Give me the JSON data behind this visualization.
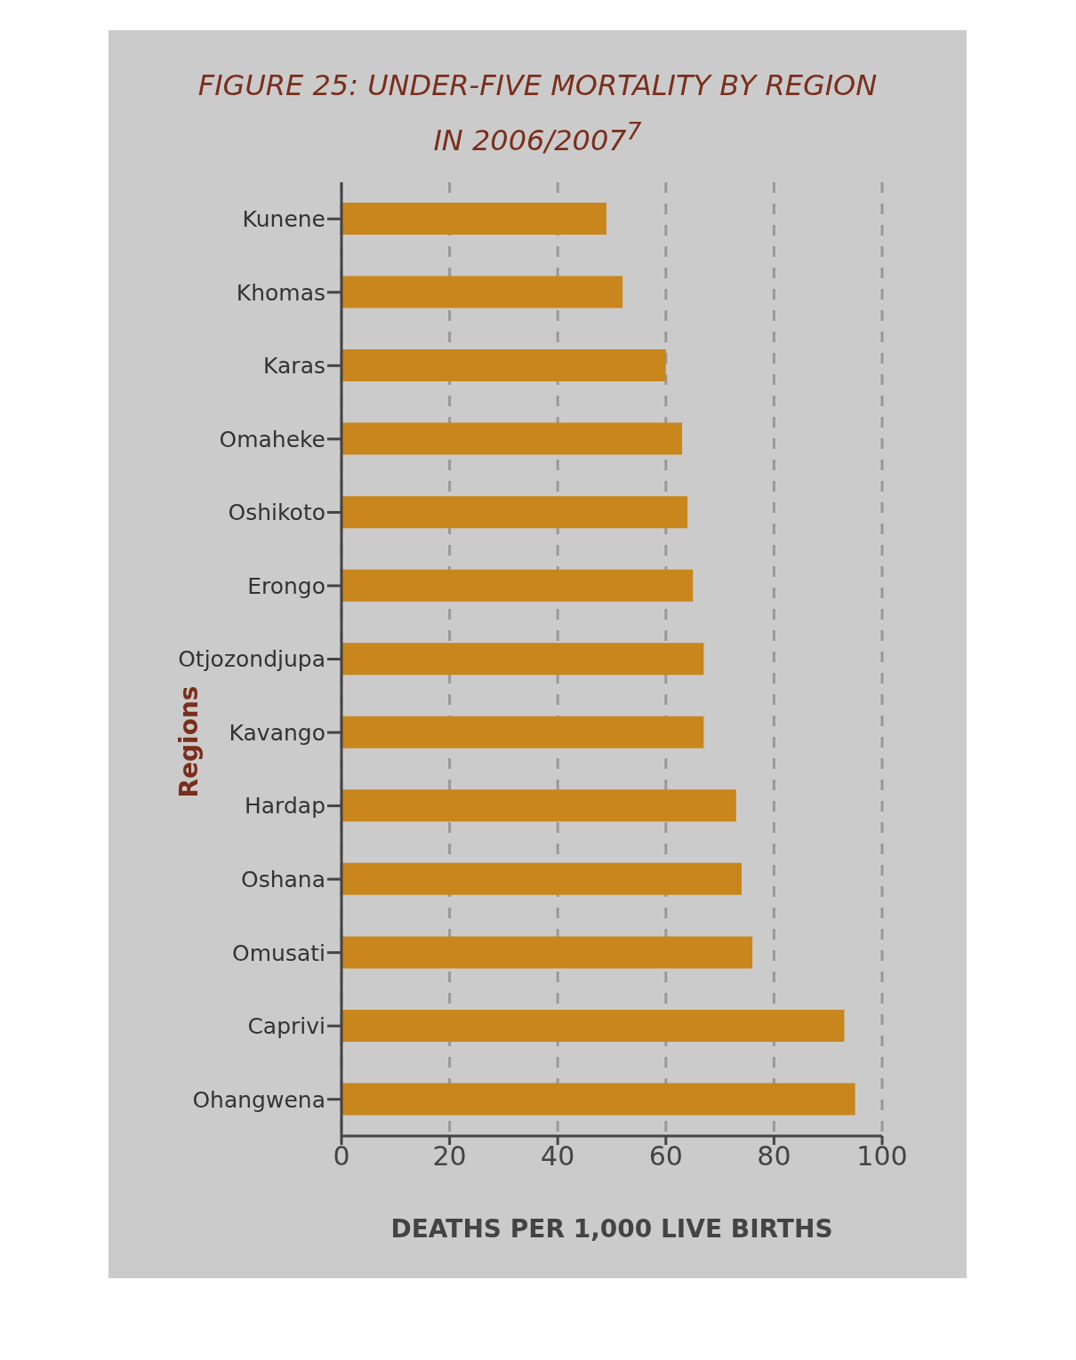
{
  "chart_data": {
    "type": "bar",
    "orientation": "horizontal",
    "title": "FIGURE 25: UNDER-FIVE MORTALITY BY REGION IN 2006/2007$^{7}$",
    "xlabel": "DEATHS PER 1,000 LIVE BIRTHS",
    "ylabel": "Regions",
    "categories": [
      "Kunene",
      "Khomas",
      "Karas",
      "Omaheke",
      "Oshikoto",
      "Erongo",
      "Otjozondjupa",
      "Kavango",
      "Hardap",
      "Oshana",
      "Omusati",
      "Caprivi",
      "Ohangwena"
    ],
    "values": [
      49,
      52,
      60,
      63,
      64,
      65,
      67,
      67,
      73,
      74,
      76,
      93,
      95
    ],
    "color": "#c8861c",
    "xlim": [
      0,
      100
    ],
    "xticks": [
      0,
      20,
      40,
      60,
      80,
      100
    ],
    "grid": "x",
    "legend": false
  }
}
